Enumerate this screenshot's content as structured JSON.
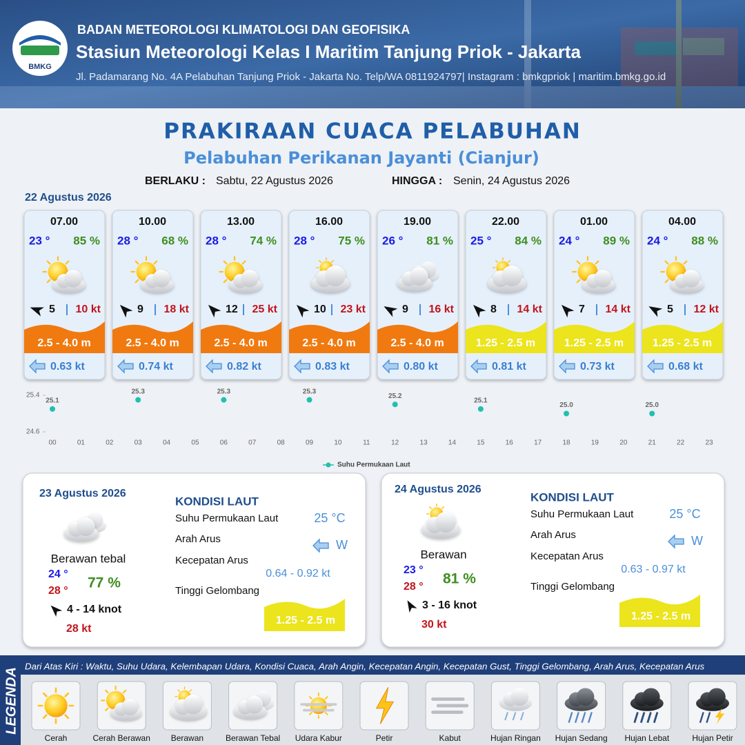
{
  "header": {
    "logo": "BMKG",
    "agency": "BADAN METEOROLOGI KLIMATOLOGI DAN GEOFISIKA",
    "station": "Stasiun Meteorologi Kelas I Maritim Tanjung Priok - Jakarta",
    "address": "Jl. Padamarang No. 4A Pelabuhan Tanjung Priok - Jakarta No. Telp/WA 0811924797| Instagram : bmkgpriok | maritim.bmkg.go.id"
  },
  "title": "PRAKIRAAN CUACA PELABUHAN",
  "subtitle": "Pelabuhan Perikanan Jayanti (Cianjur)",
  "validity": {
    "from_label": "BERLAKU :",
    "from": "Sabtu, 22 Agustus 2026",
    "to_label": "HINGGA :",
    "to": "Senin, 24 Agustus 2026"
  },
  "day1": {
    "date": "22 Agustus 2026",
    "cards": [
      {
        "time": "07.00",
        "temp": "23 °",
        "humidity": "85 %",
        "wind": "5",
        "gust": "10 kt",
        "wave": "2.5 - 4.0 m",
        "wave_color": "#f07a10",
        "current": "0.63 kt"
      },
      {
        "time": "10.00",
        "temp": "28 °",
        "humidity": "68 %",
        "wind": "9",
        "gust": "18 kt",
        "wave": "2.5 - 4.0 m",
        "wave_color": "#f07a10",
        "current": "0.74 kt"
      },
      {
        "time": "13.00",
        "temp": "28 °",
        "humidity": "74 %",
        "wind": "12",
        "gust": "25 kt",
        "wave": "2.5 - 4.0 m",
        "wave_color": "#f07a10",
        "current": "0.82 kt"
      },
      {
        "time": "16.00",
        "temp": "28 °",
        "humidity": "75 %",
        "wind": "10",
        "gust": "23 kt",
        "wave": "2.5 - 4.0 m",
        "wave_color": "#f07a10",
        "current": "0.83 kt"
      },
      {
        "time": "19.00",
        "temp": "26 °",
        "humidity": "81 %",
        "wind": "9",
        "gust": "16 kt",
        "wave": "2.5 - 4.0 m",
        "wave_color": "#f07a10",
        "current": "0.80 kt"
      },
      {
        "time": "22.00",
        "temp": "25 °",
        "humidity": "84 %",
        "wind": "8",
        "gust": "14 kt",
        "wave": "1.25 - 2.5 m",
        "wave_color": "#ece41c",
        "current": "0.81 kt"
      },
      {
        "time": "01.00",
        "temp": "24 °",
        "humidity": "89 %",
        "wind": "7",
        "gust": "14 kt",
        "wave": "1.25 - 2.5 m",
        "wave_color": "#ece41c",
        "current": "0.73 kt"
      },
      {
        "time": "04.00",
        "temp": "24 °",
        "humidity": "88 %",
        "wind": "5",
        "gust": "12 kt",
        "wave": "1.25 - 2.5 m",
        "wave_color": "#ece41c",
        "current": "0.68 kt"
      }
    ]
  },
  "chart_data": {
    "type": "scatter",
    "categories": [
      "00",
      "01",
      "02",
      "03",
      "04",
      "05",
      "06",
      "07",
      "08",
      "09",
      "10",
      "11",
      "12",
      "13",
      "14",
      "15",
      "16",
      "17",
      "18",
      "19",
      "20",
      "21",
      "22",
      "23"
    ],
    "series": [
      {
        "name": "Suhu Permukaan Laut",
        "color": "#20c0b0",
        "values": [
          25.1,
          null,
          null,
          25.3,
          null,
          null,
          25.3,
          null,
          null,
          25.3,
          null,
          null,
          25.2,
          null,
          null,
          25.1,
          null,
          null,
          25.0,
          null,
          null,
          25.0,
          null,
          null
        ],
        "value_labels": [
          "25.1",
          null,
          null,
          "25.3",
          null,
          null,
          "25.3",
          null,
          null,
          "25.3",
          null,
          null,
          "25.2",
          null,
          null,
          "25.1",
          null,
          null,
          "25.0",
          null,
          null,
          "25.0",
          null,
          null
        ]
      }
    ],
    "ylim": [
      24.6,
      25.4
    ],
    "yticks": [
      24.6,
      25.4
    ],
    "legend": "bottom"
  },
  "days": [
    {
      "date": "23 Agustus 2026",
      "condition": "Berawan tebal",
      "temp_min": "24 °",
      "temp_max": "28 °",
      "humidity": "77 %",
      "wind": "4  - 14 knot",
      "gust": "28 kt",
      "sea": {
        "heading": "KONDISI LAUT",
        "sst_label": "Suhu Permukaan Laut",
        "sst": "25 °C",
        "dir_label": "Arah Arus",
        "dir": "W",
        "speed_label": "Kecepatan Arus",
        "speed": "0.64  - 0.92 kt",
        "wave_label": "Tinggi Gelombang",
        "wave": "1.25 - 2.5 m",
        "wave_color": "#ece41c"
      }
    },
    {
      "date": "24 Agustus 2026",
      "condition": "Berawan",
      "temp_min": "23 °",
      "temp_max": "28 °",
      "humidity": "81 %",
      "wind": "3  - 16 knot",
      "gust": "30 kt",
      "sea": {
        "heading": "KONDISI LAUT",
        "sst_label": "Suhu Permukaan Laut",
        "sst": "25 °C",
        "dir_label": "Arah Arus",
        "dir": "W",
        "speed_label": "Kecepatan Arus",
        "speed": "0.63 - 0.97 kt",
        "wave_label": "Tinggi Gelombang",
        "wave": "1.25 - 2.5 m",
        "wave_color": "#ece41c"
      }
    }
  ],
  "legend": {
    "title": "LEGENDA",
    "description": "Dari Atas Kiri : Waktu, Suhu Udara, Kelembapan Udara, Kondisi Cuaca, Arah Angin, Kecepatan Angin, Kecepatan Gust, Tinggi Gelombang, Arah Arus, Kecepatan Arus",
    "items": [
      "Cerah",
      "Cerah Berawan",
      "Berawan",
      "Berawan Tebal",
      "Udara Kabur",
      "Petir",
      "Kabut",
      "Hujan Ringan",
      "Hujan Sedang",
      "Hujan Lebat",
      "Hujan Petir"
    ]
  }
}
